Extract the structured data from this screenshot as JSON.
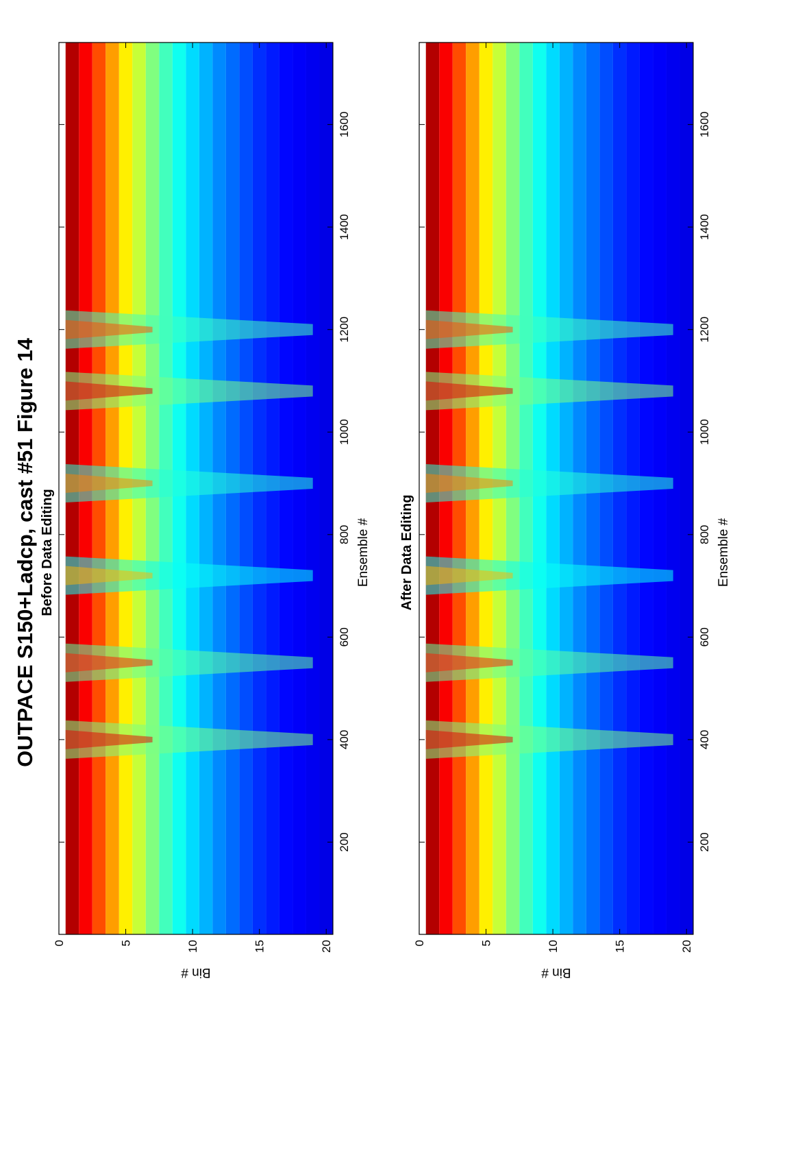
{
  "title": "OUTPACE S150+Ladcp, cast #51  Figure 14",
  "chart_data": [
    {
      "type": "heatmap",
      "subtitle": "Before Data Editing",
      "xlabel": "Ensemble #",
      "ylabel": "Bin #",
      "xlim": [
        20,
        1760
      ],
      "ylim": [
        0,
        20.5
      ],
      "xticks": [
        200,
        400,
        600,
        800,
        1000,
        1200,
        1400,
        1600
      ],
      "yticks": [
        0,
        5,
        10,
        15,
        20
      ],
      "colormap": "jet",
      "grid": false,
      "bands": [
        {
          "bin": 1,
          "value": 0.95
        },
        {
          "bin": 2,
          "value": 0.88
        },
        {
          "bin": 3,
          "value": 0.8
        },
        {
          "bin": 4,
          "value": 0.72
        },
        {
          "bin": 5,
          "value": 0.64
        },
        {
          "bin": 6,
          "value": 0.57
        },
        {
          "bin": 7,
          "value": 0.5
        },
        {
          "bin": 8,
          "value": 0.44
        },
        {
          "bin": 9,
          "value": 0.39
        },
        {
          "bin": 10,
          "value": 0.34
        },
        {
          "bin": 11,
          "value": 0.3
        },
        {
          "bin": 12,
          "value": 0.26
        },
        {
          "bin": 13,
          "value": 0.23
        },
        {
          "bin": 14,
          "value": 0.2
        },
        {
          "bin": 15,
          "value": 0.17
        },
        {
          "bin": 16,
          "value": 0.15
        },
        {
          "bin": 17,
          "value": 0.13
        },
        {
          "bin": 18,
          "value": 0.12
        },
        {
          "bin": 19,
          "value": 0.11
        },
        {
          "bin": 20,
          "value": 0.1
        }
      ],
      "bright_streaks": [
        {
          "ensemble": 400,
          "value": 0.9
        },
        {
          "ensemble": 550,
          "value": 0.85
        },
        {
          "ensemble": 720,
          "value": 0.7
        },
        {
          "ensemble": 900,
          "value": 0.75
        },
        {
          "ensemble": 1080,
          "value": 0.9
        },
        {
          "ensemble": 1200,
          "value": 0.8
        }
      ]
    },
    {
      "type": "heatmap",
      "subtitle": "After Data Editing",
      "xlabel": "Ensemble #",
      "ylabel": "Bin #",
      "xlim": [
        20,
        1760
      ],
      "ylim": [
        0,
        20.5
      ],
      "xticks": [
        200,
        400,
        600,
        800,
        1000,
        1200,
        1400,
        1600
      ],
      "yticks": [
        0,
        5,
        10,
        15,
        20
      ],
      "colormap": "jet",
      "grid": false,
      "bands": [
        {
          "bin": 1,
          "value": 0.95
        },
        {
          "bin": 2,
          "value": 0.88
        },
        {
          "bin": 3,
          "value": 0.8
        },
        {
          "bin": 4,
          "value": 0.72
        },
        {
          "bin": 5,
          "value": 0.64
        },
        {
          "bin": 6,
          "value": 0.57
        },
        {
          "bin": 7,
          "value": 0.5
        },
        {
          "bin": 8,
          "value": 0.44
        },
        {
          "bin": 9,
          "value": 0.39
        },
        {
          "bin": 10,
          "value": 0.34
        },
        {
          "bin": 11,
          "value": 0.3
        },
        {
          "bin": 12,
          "value": 0.26
        },
        {
          "bin": 13,
          "value": 0.23
        },
        {
          "bin": 14,
          "value": 0.2
        },
        {
          "bin": 15,
          "value": 0.17
        },
        {
          "bin": 16,
          "value": 0.15
        },
        {
          "bin": 17,
          "value": 0.13
        },
        {
          "bin": 18,
          "value": 0.12
        },
        {
          "bin": 19,
          "value": 0.11
        },
        {
          "bin": 20,
          "value": 0.1
        }
      ],
      "bright_streaks": [
        {
          "ensemble": 400,
          "value": 0.9
        },
        {
          "ensemble": 550,
          "value": 0.85
        },
        {
          "ensemble": 720,
          "value": 0.7
        },
        {
          "ensemble": 900,
          "value": 0.75
        },
        {
          "ensemble": 1080,
          "value": 0.9
        },
        {
          "ensemble": 1200,
          "value": 0.8
        }
      ]
    }
  ]
}
